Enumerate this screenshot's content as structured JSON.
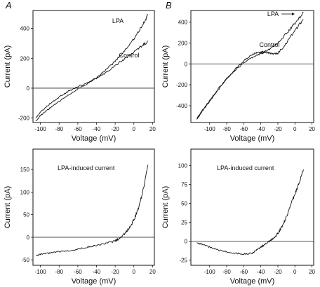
{
  "chart_data": [
    {
      "panel": "A",
      "type": "line",
      "xlabel": "Voltage (mV)",
      "ylabel": "Current (pA)",
      "xlim": [
        -108,
        22
      ],
      "ylim": [
        -230,
        520
      ],
      "xticks": [
        -100,
        -80,
        -60,
        -40,
        -20,
        0,
        20
      ],
      "yticks": [
        -200,
        0,
        200,
        400
      ],
      "zero_line": true,
      "annotations": [
        "LPA",
        "Control"
      ],
      "series": [
        {
          "name": "LPA",
          "x": [
            -105,
            -100,
            -90,
            -80,
            -70,
            -60,
            -50,
            -40,
            -30,
            -20,
            -10,
            0,
            10,
            15
          ],
          "y": [
            -220,
            -185,
            -135,
            -90,
            -45,
            -5,
            30,
            70,
            120,
            180,
            250,
            330,
            430,
            490
          ]
        },
        {
          "name": "Control",
          "x": [
            -105,
            -100,
            -90,
            -80,
            -70,
            -60,
            -50,
            -40,
            -30,
            -20,
            -10,
            0,
            10,
            15
          ],
          "y": [
            -200,
            -160,
            -105,
            -60,
            -20,
            10,
            35,
            65,
            105,
            150,
            195,
            240,
            290,
            315
          ]
        }
      ]
    },
    {
      "panel": "B",
      "type": "line",
      "xlabel": "Voltage (mV)",
      "ylabel": "Current (pA)",
      "xlim": [
        -122,
        22
      ],
      "ylim": [
        -560,
        510
      ],
      "xticks": [
        -100,
        -80,
        -60,
        -40,
        -20,
        0,
        20
      ],
      "yticks": [
        -400,
        -200,
        0,
        200,
        400
      ],
      "zero_line": true,
      "annotations": [
        "LPA",
        "Control"
      ],
      "series": [
        {
          "name": "LPA",
          "x": [
            -115,
            -110,
            -100,
            -90,
            -80,
            -70,
            -60,
            -50,
            -45,
            -40,
            -35,
            -30,
            -20,
            -10,
            0,
            10
          ],
          "y": [
            -530,
            -470,
            -360,
            -250,
            -140,
            -50,
            30,
            90,
            105,
            110,
            120,
            140,
            200,
            290,
            390,
            490
          ]
        },
        {
          "name": "Control",
          "x": [
            -115,
            -110,
            -100,
            -90,
            -80,
            -70,
            -60,
            -50,
            -40,
            -35,
            -30,
            -25,
            -20,
            -10,
            0,
            10
          ],
          "y": [
            -520,
            -460,
            -350,
            -240,
            -140,
            -60,
            10,
            60,
            100,
            110,
            105,
            95,
            100,
            200,
            320,
            420
          ]
        }
      ]
    },
    {
      "panel": "A-lower",
      "type": "line",
      "title": "LPA-induced current",
      "xlabel": "Voltage (mV)",
      "ylabel": "Current (pA)",
      "xlim": [
        -108,
        22
      ],
      "ylim": [
        -62,
        195
      ],
      "xticks": [
        -100,
        -80,
        -60,
        -40,
        -20,
        0,
        20
      ],
      "yticks": [
        -50,
        0,
        50,
        100,
        150
      ],
      "zero_line": true,
      "series": [
        {
          "name": "LPA-induced current",
          "x": [
            -105,
            -100,
            -90,
            -80,
            -70,
            -60,
            -50,
            -40,
            -30,
            -20,
            -15,
            -10,
            -5,
            0,
            5,
            10,
            15
          ],
          "y": [
            -40,
            -38,
            -35,
            -32,
            -30,
            -26,
            -22,
            -18,
            -14,
            -8,
            -2,
            8,
            20,
            38,
            65,
            105,
            160
          ]
        }
      ]
    },
    {
      "panel": "B-lower",
      "type": "line",
      "title": "LPA-induced current",
      "xlabel": "Voltage (mV)",
      "ylabel": "Current (pA)",
      "xlim": [
        -122,
        22
      ],
      "ylim": [
        -32,
        122
      ],
      "xticks": [
        -100,
        -80,
        -60,
        -40,
        -20,
        0,
        20
      ],
      "yticks": [
        -25,
        0,
        25,
        50,
        75,
        100
      ],
      "zero_line": true,
      "series": [
        {
          "name": "LPA-induced current",
          "x": [
            -115,
            -110,
            -100,
            -90,
            -80,
            -70,
            -60,
            -50,
            -45,
            -40,
            -35,
            -30,
            -25,
            -20,
            -15,
            -10,
            -5,
            0,
            5,
            10
          ],
          "y": [
            -2,
            -4,
            -8,
            -12,
            -14,
            -16,
            -17,
            -16,
            -12,
            -8,
            -4,
            0,
            4,
            10,
            20,
            32,
            48,
            62,
            78,
            95
          ]
        }
      ]
    }
  ]
}
